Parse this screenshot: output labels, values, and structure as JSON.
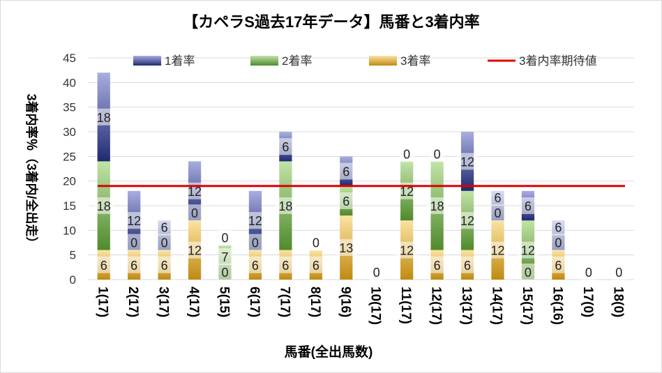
{
  "chart_data": {
    "type": "bar",
    "stacked": true,
    "title": "【カペラS過去17年データ】馬番と3着内率",
    "xlabel": "馬番(全出馬数)",
    "ylabel": "3着内率％（3着内/全出走）",
    "ylim": [
      0,
      45
    ],
    "ytick_step": 5,
    "grid": true,
    "legend_position": "top",
    "categories": [
      "1(17)",
      "2(17)",
      "3(17)",
      "4(17)",
      "5(15)",
      "6(17)",
      "7(17)",
      "8(17)",
      "9(16)",
      "10(17)",
      "11(17)",
      "12(17)",
      "13(17)",
      "14(17)",
      "15(17)",
      "16(16)",
      "17(0)",
      "18(0)"
    ],
    "series": [
      {
        "name": "3着率",
        "color": "#d9a227",
        "values": [
          6,
          6,
          6,
          12,
          0,
          6,
          6,
          6,
          13,
          0,
          12,
          6,
          6,
          12,
          0,
          6,
          0,
          0
        ]
      },
      {
        "name": "2着率",
        "color": "#5f9a3a",
        "values": [
          18,
          0,
          0,
          0,
          7,
          0,
          18,
          0,
          6,
          0,
          12,
          18,
          12,
          0,
          12,
          0,
          0,
          0
        ]
      },
      {
        "name": "1着率",
        "color": "#2e3a80",
        "values": [
          18,
          12,
          6,
          12,
          0,
          12,
          6,
          0,
          6,
          0,
          0,
          0,
          12,
          6,
          6,
          6,
          0,
          0
        ]
      }
    ],
    "bar_labels": [
      [
        "6",
        "18",
        "18"
      ],
      [
        "6",
        "0",
        "12"
      ],
      [
        "6",
        "0",
        "6"
      ],
      [
        "12",
        "0",
        "12"
      ],
      [
        "0",
        "7",
        "0"
      ],
      [
        "6",
        "0",
        "12"
      ],
      [
        "6",
        "18",
        "6"
      ],
      [
        "6",
        "0",
        ""
      ],
      [
        "13",
        "6",
        "6"
      ],
      [
        "0",
        "",
        ""
      ],
      [
        "12",
        "12",
        "0"
      ],
      [
        "6",
        "18",
        "0"
      ],
      [
        "6",
        "12",
        "12"
      ],
      [
        "12",
        "0",
        "6"
      ],
      [
        "0",
        "12",
        "6"
      ],
      [
        "6",
        "0",
        "6"
      ],
      [
        "0",
        "",
        ""
      ],
      [
        "0",
        "",
        ""
      ]
    ],
    "reference_line": {
      "name": "3着内率期待値",
      "value": 19,
      "color": "#e00000"
    }
  }
}
